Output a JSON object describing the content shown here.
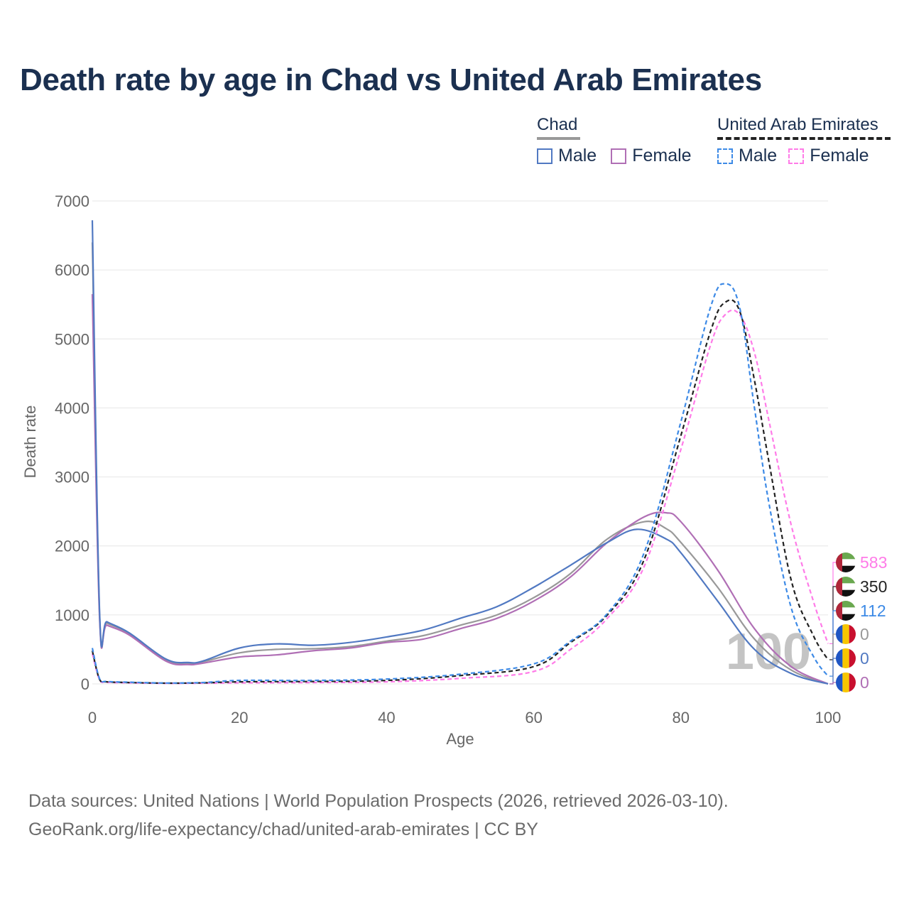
{
  "title": "Death rate by age in Chad vs United Arab Emirates",
  "legend": {
    "groups": [
      {
        "name": "Chad",
        "line_color": "#999999",
        "line_style": "solid",
        "items": [
          {
            "label": "Male",
            "color": "#5179c2",
            "style": "solid"
          },
          {
            "label": "Female",
            "color": "#b06fb5",
            "style": "solid"
          }
        ]
      },
      {
        "name": "United Arab Emirates",
        "line_color": "#222222",
        "line_style": "dashed",
        "items": [
          {
            "label": "Male",
            "color": "#3d8ae6",
            "style": "dashed"
          },
          {
            "label": "Female",
            "color": "#ff7be8",
            "style": "dashed"
          }
        ]
      }
    ]
  },
  "watermark": "100",
  "end_labels": [
    {
      "value": "583",
      "color": "#ff7be8",
      "flag": "uae"
    },
    {
      "value": "350",
      "color": "#222222",
      "flag": "uae"
    },
    {
      "value": "112",
      "color": "#3d8ae6",
      "flag": "uae"
    },
    {
      "value": "0",
      "color": "#999999",
      "flag": "chad"
    },
    {
      "value": "0",
      "color": "#5179c2",
      "flag": "chad"
    },
    {
      "value": "0",
      "color": "#b06fb5",
      "flag": "chad"
    }
  ],
  "footer": {
    "line1": "Data sources: United Nations | World Population Prospects (2026, retrieved 2026-03-10).",
    "line2": "GeoRank.org/life-expectancy/chad/united-arab-emirates | CC BY"
  },
  "chart_data": {
    "type": "line",
    "title": "Death rate by age in Chad vs United Arab Emirates",
    "xlabel": "Age",
    "ylabel": "Death rate",
    "xlim": [
      0,
      100
    ],
    "ylim": [
      0,
      7000
    ],
    "xticks": [
      0,
      20,
      40,
      60,
      80,
      100
    ],
    "yticks": [
      0,
      1000,
      2000,
      3000,
      4000,
      5000,
      6000,
      7000
    ],
    "grid": true,
    "series": [
      {
        "name": "Chad Total",
        "color": "#999999",
        "dash": false,
        "x": [
          0,
          1,
          2,
          5,
          10,
          13,
          15,
          20,
          25,
          30,
          35,
          40,
          45,
          50,
          55,
          60,
          65,
          70,
          75,
          78,
          80,
          85,
          90,
          95,
          100
        ],
        "y": [
          6400,
          950,
          880,
          730,
          350,
          300,
          320,
          450,
          500,
          510,
          540,
          620,
          700,
          850,
          1000,
          1250,
          1600,
          2100,
          2350,
          2250,
          2050,
          1400,
          650,
          200,
          0
        ]
      },
      {
        "name": "Chad Male",
        "color": "#5179c2",
        "dash": false,
        "x": [
          0,
          1,
          2,
          5,
          10,
          13,
          15,
          20,
          25,
          30,
          35,
          40,
          45,
          50,
          55,
          60,
          65,
          70,
          74,
          78,
          80,
          85,
          90,
          95,
          100
        ],
        "y": [
          6720,
          990,
          900,
          740,
          360,
          310,
          330,
          520,
          580,
          560,
          600,
          680,
          780,
          950,
          1120,
          1400,
          1720,
          2050,
          2240,
          2100,
          1900,
          1200,
          500,
          150,
          0
        ]
      },
      {
        "name": "Chad Female",
        "color": "#b06fb5",
        "dash": false,
        "x": [
          0,
          1,
          2,
          5,
          10,
          13,
          15,
          20,
          25,
          30,
          35,
          40,
          45,
          50,
          55,
          60,
          65,
          70,
          75,
          78,
          80,
          85,
          90,
          95,
          100
        ],
        "y": [
          5650,
          910,
          850,
          710,
          330,
          280,
          300,
          390,
          420,
          480,
          520,
          600,
          650,
          800,
          950,
          1200,
          1550,
          2050,
          2420,
          2480,
          2350,
          1650,
          800,
          250,
          0
        ]
      },
      {
        "name": "United Arab Emirates Total",
        "color": "#222222",
        "dash": true,
        "x": [
          0,
          1,
          2,
          5,
          10,
          15,
          20,
          30,
          40,
          50,
          60,
          65,
          70,
          75,
          80,
          84,
          86,
          88,
          90,
          92,
          95,
          98,
          100
        ],
        "y": [
          480,
          60,
          30,
          20,
          10,
          15,
          30,
          35,
          50,
          120,
          250,
          600,
          1000,
          1800,
          3600,
          5100,
          5530,
          5400,
          4400,
          3200,
          1500,
          700,
          350
        ]
      },
      {
        "name": "United Arab Emirates Male",
        "color": "#3d8ae6",
        "dash": true,
        "x": [
          0,
          1,
          2,
          5,
          10,
          15,
          20,
          30,
          40,
          50,
          60,
          65,
          70,
          75,
          80,
          84,
          86,
          88,
          90,
          92,
          95,
          98,
          100
        ],
        "y": [
          520,
          70,
          35,
          25,
          12,
          20,
          50,
          50,
          70,
          140,
          290,
          620,
          1020,
          1900,
          3800,
          5450,
          5800,
          5450,
          4000,
          2600,
          1100,
          400,
          112
        ]
      },
      {
        "name": "United Arab Emirates Female",
        "color": "#ff7be8",
        "dash": true,
        "x": [
          0,
          1,
          2,
          5,
          10,
          15,
          20,
          30,
          40,
          50,
          60,
          65,
          70,
          75,
          80,
          84,
          86,
          88,
          90,
          92,
          95,
          98,
          100
        ],
        "y": [
          440,
          55,
          25,
          15,
          8,
          10,
          15,
          20,
          30,
          80,
          180,
          500,
          950,
          1700,
          3400,
          4900,
          5350,
          5350,
          4800,
          3800,
          2300,
          1200,
          583
        ]
      }
    ]
  }
}
